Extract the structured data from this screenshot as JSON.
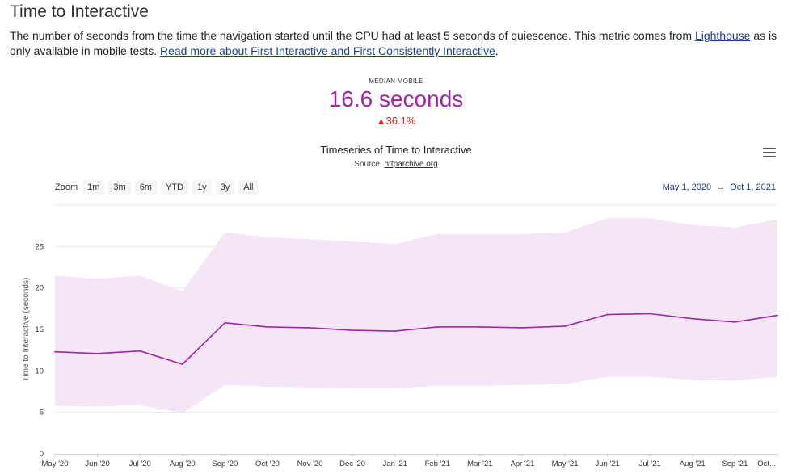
{
  "heading": "Time to Interactive",
  "description": {
    "text_before": "The number of seconds from the time the navigation started until the CPU had at least 5 seconds of quiescence. This metric comes from ",
    "link1": "Lighthouse",
    "text_middle": " as is only available in mobile tests. ",
    "link2": "Read more about First Interactive and First Consistently Interactive",
    "text_after": "."
  },
  "kpi": {
    "label": "MEDIAN MOBILE",
    "value": "16.6 seconds",
    "change": "36.1%",
    "change_color": "#e0201b",
    "value_color": "#a023a8"
  },
  "toolbar": {
    "menu_icon": "hamburger-menu-icon",
    "zoom_label": "Zoom",
    "zoom_options": [
      "1m",
      "3m",
      "6m",
      "YTD",
      "1y",
      "3y",
      "All"
    ],
    "range_from": "May 1, 2020",
    "range_arrow": "→",
    "range_to": "Oct 1, 2021"
  },
  "chart_data": {
    "type": "line",
    "title": "Timeseries of Time to Interactive",
    "source_label": "Source: ",
    "source_link": "httparchive.org",
    "ylabel": "Time to Interactive (seconds)",
    "xlabel": "",
    "ylim": [
      0,
      30
    ],
    "yticks": [
      0,
      5,
      10,
      15,
      20,
      25
    ],
    "grid": true,
    "categories": [
      "May '20",
      "Jun '20",
      "Jul '20",
      "Aug '20",
      "Sep '20",
      "Oct '20",
      "Nov '20",
      "Dec '20",
      "Jan '21",
      "Feb '21",
      "Mar '21",
      "Apr '21",
      "May '21",
      "Jun '21",
      "Jul '21",
      "Aug '21",
      "Sep '21",
      "Oct..."
    ],
    "series": [
      {
        "type": "line",
        "color": "#a023a8",
        "values": [
          12.3,
          12.1,
          12.4,
          10.8,
          15.8,
          15.3,
          15.2,
          14.9,
          14.8,
          15.3,
          15.3,
          15.2,
          15.4,
          16.8,
          16.9,
          16.3,
          15.9,
          16.7
        ]
      },
      {
        "type": "arearange",
        "color": "#f4e6f4",
        "low": [
          5.8,
          5.7,
          5.9,
          4.9,
          8.3,
          8.1,
          8.0,
          7.9,
          7.9,
          8.2,
          8.2,
          8.3,
          8.4,
          9.3,
          9.3,
          8.9,
          8.8,
          9.3
        ],
        "high": [
          21.5,
          21.1,
          21.5,
          19.6,
          26.7,
          26.1,
          25.9,
          25.6,
          25.3,
          26.5,
          26.5,
          26.5,
          26.7,
          28.4,
          28.4,
          27.6,
          27.3,
          28.3
        ]
      }
    ]
  }
}
